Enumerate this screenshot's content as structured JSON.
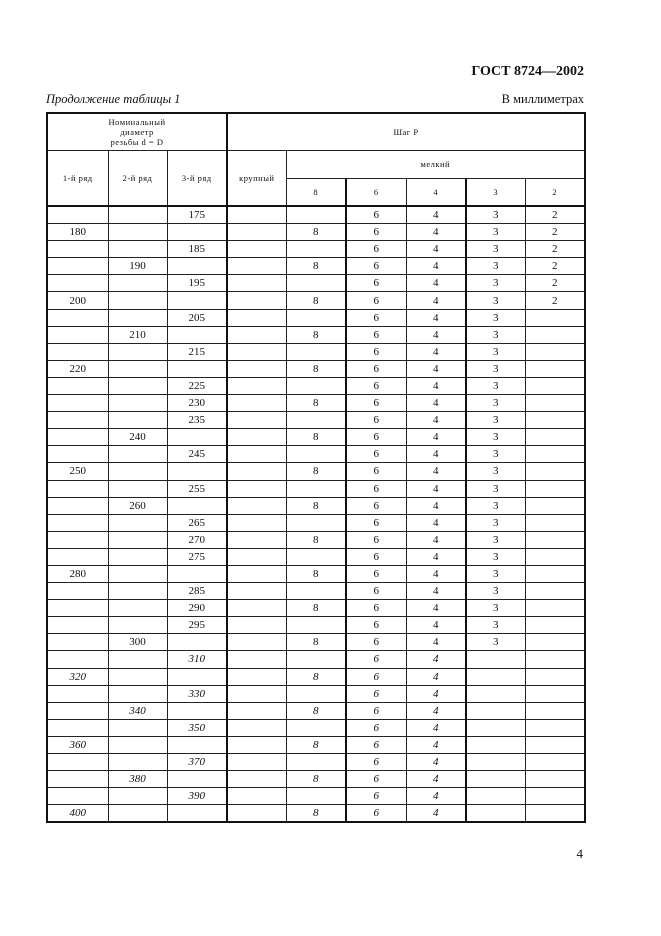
{
  "header": {
    "doc_code": "ГОСТ 8724—2002",
    "caption": "Продолжение таблицы 1",
    "units": "В миллиметрах"
  },
  "table": {
    "head": {
      "diameter": "Номинальный диаметр резьбы d = D",
      "pitch": "Шаг P",
      "row1": "1-й ряд",
      "row2": "2-й ряд",
      "row3": "3-й ряд",
      "coarse": "крупный",
      "fine": "мелкий",
      "fine_cols": [
        "8",
        "6",
        "4",
        "3",
        "2"
      ]
    },
    "rows": [
      {
        "c": [
          "",
          "",
          "175",
          "",
          "",
          "6",
          "4",
          "3",
          "2"
        ]
      },
      {
        "c": [
          "180",
          "",
          "",
          "",
          "8",
          "6",
          "4",
          "3",
          "2"
        ]
      },
      {
        "c": [
          "",
          "",
          "185",
          "",
          "",
          "6",
          "4",
          "3",
          "2"
        ]
      },
      {
        "c": [
          "",
          "190",
          "",
          "",
          "8",
          "6",
          "4",
          "3",
          "2"
        ]
      },
      {
        "c": [
          "",
          "",
          "195",
          "",
          "",
          "6",
          "4",
          "3",
          "2"
        ]
      },
      {
        "c": [
          "200",
          "",
          "",
          "",
          "8",
          "6",
          "4",
          "3",
          "2"
        ]
      },
      {
        "c": [
          "",
          "",
          "205",
          "",
          "",
          "6",
          "4",
          "3",
          ""
        ]
      },
      {
        "c": [
          "",
          "210",
          "",
          "",
          "8",
          "6",
          "4",
          "3",
          ""
        ]
      },
      {
        "c": [
          "",
          "",
          "215",
          "",
          "",
          "6",
          "4",
          "3",
          ""
        ]
      },
      {
        "c": [
          "220",
          "",
          "",
          "",
          "8",
          "6",
          "4",
          "3",
          ""
        ]
      },
      {
        "c": [
          "",
          "",
          "225",
          "",
          "",
          "6",
          "4",
          "3",
          ""
        ]
      },
      {
        "c": [
          "",
          "",
          "230",
          "",
          "8",
          "6",
          "4",
          "3",
          ""
        ]
      },
      {
        "c": [
          "",
          "",
          "235",
          "",
          "",
          "6",
          "4",
          "3",
          ""
        ]
      },
      {
        "c": [
          "",
          "240",
          "",
          "",
          "8",
          "6",
          "4",
          "3",
          ""
        ]
      },
      {
        "c": [
          "",
          "",
          "245",
          "",
          "",
          "6",
          "4",
          "3",
          ""
        ]
      },
      {
        "c": [
          "250",
          "",
          "",
          "",
          "8",
          "6",
          "4",
          "3",
          ""
        ]
      },
      {
        "c": [
          "",
          "",
          "255",
          "",
          "",
          "6",
          "4",
          "3",
          ""
        ]
      },
      {
        "c": [
          "",
          "260",
          "",
          "",
          "8",
          "6",
          "4",
          "3",
          ""
        ]
      },
      {
        "c": [
          "",
          "",
          "265",
          "",
          "",
          "6",
          "4",
          "3",
          ""
        ]
      },
      {
        "c": [
          "",
          "",
          "270",
          "",
          "8",
          "6",
          "4",
          "3",
          ""
        ]
      },
      {
        "c": [
          "",
          "",
          "275",
          "",
          "",
          "6",
          "4",
          "3",
          ""
        ]
      },
      {
        "c": [
          "280",
          "",
          "",
          "",
          "8",
          "6",
          "4",
          "3",
          ""
        ]
      },
      {
        "c": [
          "",
          "",
          "285",
          "",
          "",
          "6",
          "4",
          "3",
          ""
        ]
      },
      {
        "c": [
          "",
          "",
          "290",
          "",
          "8",
          "6",
          "4",
          "3",
          ""
        ]
      },
      {
        "c": [
          "",
          "",
          "295",
          "",
          "",
          "6",
          "4",
          "3",
          ""
        ]
      },
      {
        "c": [
          "",
          "300",
          "",
          "",
          "8",
          "6",
          "4",
          "3",
          ""
        ]
      },
      {
        "c": [
          "",
          "",
          "310",
          "",
          "",
          "6",
          "4",
          "",
          ""
        ],
        "italic": true
      },
      {
        "c": [
          "320",
          "",
          "",
          "",
          "8",
          "6",
          "4",
          "",
          ""
        ],
        "italic": true
      },
      {
        "c": [
          "",
          "",
          "330",
          "",
          "",
          "6",
          "4",
          "",
          ""
        ],
        "italic": true
      },
      {
        "c": [
          "",
          "340",
          "",
          "",
          "8",
          "6",
          "4",
          "",
          ""
        ],
        "italic": true
      },
      {
        "c": [
          "",
          "",
          "350",
          "",
          "",
          "6",
          "4",
          "",
          ""
        ],
        "italic": true
      },
      {
        "c": [
          "360",
          "",
          "",
          "",
          "8",
          "6",
          "4",
          "",
          ""
        ],
        "italic": true
      },
      {
        "c": [
          "",
          "",
          "370",
          "",
          "",
          "6",
          "4",
          "",
          ""
        ],
        "italic": true
      },
      {
        "c": [
          "",
          "380",
          "",
          "",
          "8",
          "6",
          "4",
          "",
          ""
        ],
        "italic": true
      },
      {
        "c": [
          "",
          "",
          "390",
          "",
          "",
          "6",
          "4",
          "",
          ""
        ],
        "italic": true
      },
      {
        "c": [
          "400",
          "",
          "",
          "",
          "8",
          "6",
          "4",
          "",
          ""
        ],
        "italic": true
      }
    ]
  },
  "footer": {
    "page_number": "4"
  }
}
